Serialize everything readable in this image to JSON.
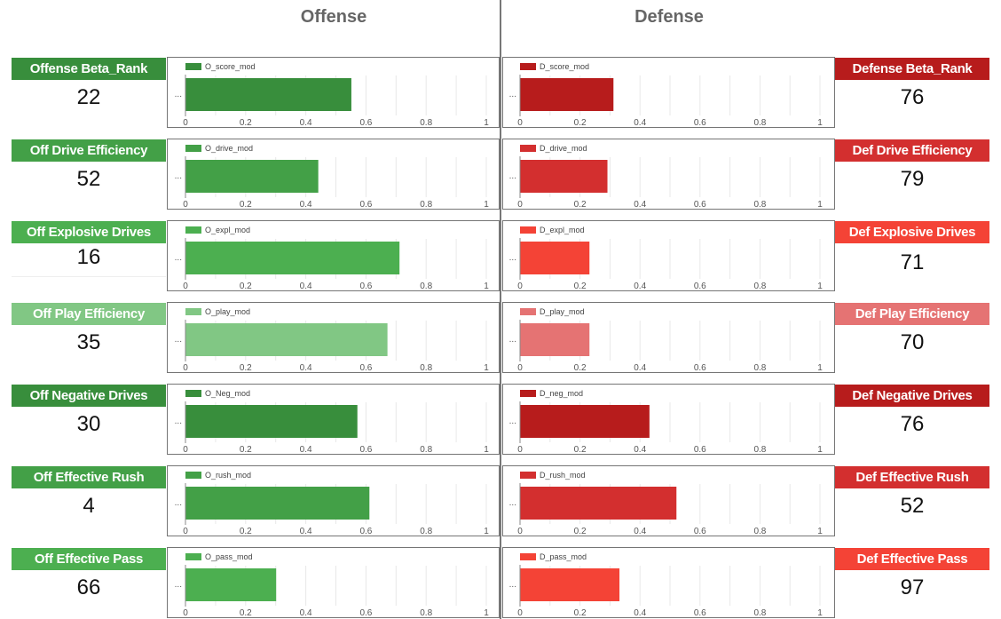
{
  "headers": {
    "offense": "Offense",
    "defense": "Defense"
  },
  "axis_ticks": [
    "0",
    "0.2",
    "0.4",
    "0.6",
    "0.8",
    "1"
  ],
  "category_label": "...",
  "offense": [
    {
      "label": "Offense Beta_Rank",
      "rank": "22",
      "series": "O_score_mod",
      "value": 0.55,
      "color": "#388e3c"
    },
    {
      "label": "Off Drive Efficiency",
      "rank": "52",
      "series": "O_drive_mod",
      "value": 0.44,
      "color": "#43a047"
    },
    {
      "label": "Off Explosive Drives",
      "rank": "16",
      "series": "O_expl_mod",
      "value": 0.71,
      "color": "#4caf50"
    },
    {
      "label": "Off Play Efficiency",
      "rank": "35",
      "series": "O_play_mod",
      "value": 0.67,
      "color": "#81c784"
    },
    {
      "label": "Off Negative Drives",
      "rank": "30",
      "series": "O_Neg_mod",
      "value": 0.57,
      "color": "#388e3c"
    },
    {
      "label": "Off Effective Rush",
      "rank": "4",
      "series": "O_rush_mod",
      "value": 0.61,
      "color": "#43a047"
    },
    {
      "label": "Off Effective Pass",
      "rank": "66",
      "series": "O_pass_mod",
      "value": 0.3,
      "color": "#4caf50"
    }
  ],
  "defense": [
    {
      "label": "Defense Beta_Rank",
      "rank": "76",
      "series": "D_score_mod",
      "value": 0.31,
      "color": "#b71c1c"
    },
    {
      "label": "Def Drive Efficiency",
      "rank": "79",
      "series": "D_drive_mod",
      "value": 0.29,
      "color": "#d32f2f"
    },
    {
      "label": "Def Explosive Drives",
      "rank": "71",
      "series": "D_expl_mod",
      "value": 0.23,
      "color": "#f44336"
    },
    {
      "label": "Def Play Efficiency",
      "rank": "70",
      "series": "D_play_mod",
      "value": 0.23,
      "color": "#e57373"
    },
    {
      "label": "Def Negative Drives",
      "rank": "76",
      "series": "D_neg_mod",
      "value": 0.43,
      "color": "#b71c1c"
    },
    {
      "label": "Def Effective Rush",
      "rank": "52",
      "series": "D_rush_mod",
      "value": 0.52,
      "color": "#d32f2f"
    },
    {
      "label": "Def Effective Pass",
      "rank": "97",
      "series": "D_pass_mod",
      "value": 0.33,
      "color": "#f44336"
    }
  ],
  "chart_data": [
    {
      "type": "bar",
      "orientation": "horizontal",
      "title": "Offense",
      "xlim": [
        0,
        1
      ],
      "x_ticks": [
        0,
        0.2,
        0.4,
        0.6,
        0.8,
        1
      ],
      "series": [
        {
          "name": "O_score_mod",
          "values": [
            0.55
          ]
        },
        {
          "name": "O_drive_mod",
          "values": [
            0.44
          ]
        },
        {
          "name": "O_expl_mod",
          "values": [
            0.71
          ]
        },
        {
          "name": "O_play_mod",
          "values": [
            0.67
          ]
        },
        {
          "name": "O_Neg_mod",
          "values": [
            0.57
          ]
        },
        {
          "name": "O_rush_mod",
          "values": [
            0.61
          ]
        },
        {
          "name": "O_pass_mod",
          "values": [
            0.3
          ]
        }
      ],
      "legend": "top-left",
      "grid": true
    },
    {
      "type": "bar",
      "orientation": "horizontal",
      "title": "Defense",
      "xlim": [
        0,
        1
      ],
      "x_ticks": [
        0,
        0.2,
        0.4,
        0.6,
        0.8,
        1
      ],
      "series": [
        {
          "name": "D_score_mod",
          "values": [
            0.31
          ]
        },
        {
          "name": "D_drive_mod",
          "values": [
            0.29
          ]
        },
        {
          "name": "D_expl_mod",
          "values": [
            0.23
          ]
        },
        {
          "name": "D_play_mod",
          "values": [
            0.23
          ]
        },
        {
          "name": "D_neg_mod",
          "values": [
            0.43
          ]
        },
        {
          "name": "D_rush_mod",
          "values": [
            0.52
          ]
        },
        {
          "name": "D_pass_mod",
          "values": [
            0.33
          ]
        }
      ],
      "legend": "top-left",
      "grid": true
    }
  ]
}
